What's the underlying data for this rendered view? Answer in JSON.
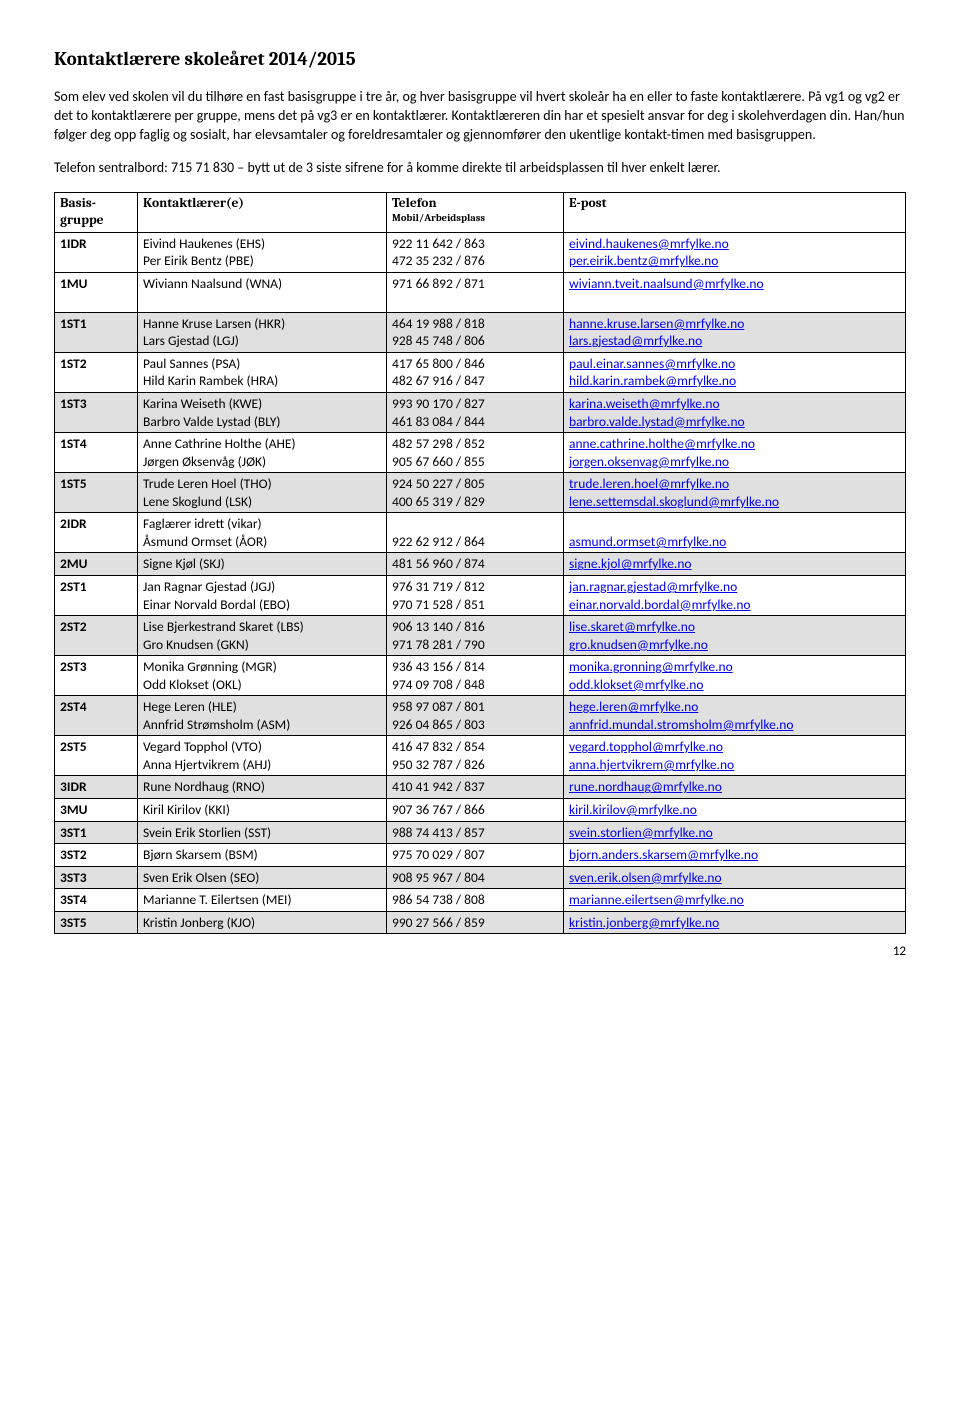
{
  "title": "Kontaktlærere skoleåret 2014/2015",
  "para1": "Som elev ved skolen vil du tilhøre en fast basisgruppe i tre år, og hver basisgruppe vil hvert skoleår ha en eller to faste kontaktlærere. På vg1 og vg2 er det to kontaktlærere per gruppe, mens det på vg3 er en kontaktlærer. Kontaktlæreren din har et spesielt ansvar for deg i skolehverdagen din. Han/hun følger deg opp faglig og sosialt, har elevsamtaler og foreldresamtaler og gjennomfører den ukentlige kontakt-timen med basisgruppen.",
  "para2": "Telefon sentralbord: 715 71 830 – bytt ut de 3 siste sifrene for å komme direkte til arbeidsplassen til hver enkelt lærer.",
  "headers": {
    "group": "Basis-\ngruppe",
    "teacher": "Kontaktlærer(e)",
    "phone": "Telefon",
    "phone_sub": "Mobil/Arbeidsplass",
    "email": "E-post"
  },
  "rows": [
    {
      "shade": false,
      "group": "1IDR",
      "teachers": [
        "Eivind Haukenes (EHS)",
        "Per Eirik Bentz (PBE)"
      ],
      "phones": [
        "922 11 642 / 863",
        "472 35 232 / 876"
      ],
      "emails": [
        "eivind.haukenes@mrfylke.no",
        "per.eirik.bentz@mrfylke.no"
      ]
    },
    {
      "shade": false,
      "group": "1MU",
      "teachers": [
        "Wiviann Naalsund (WNA)",
        ""
      ],
      "phones": [
        "971 66 892 / 871",
        ""
      ],
      "emails": [
        "wiviann.tveit.naalsund@mrfylke.no",
        ""
      ]
    },
    {
      "shade": true,
      "group": "1ST1",
      "teachers": [
        "Hanne Kruse Larsen (HKR)",
        "Lars Gjestad (LGJ)"
      ],
      "phones": [
        "464 19 988 / 818",
        "928 45 748 / 806"
      ],
      "emails": [
        "hanne.kruse.larsen@mrfylke.no",
        "lars.gjestad@mrfylke.no"
      ]
    },
    {
      "shade": false,
      "group": "1ST2",
      "teachers": [
        "Paul Sannes (PSA)",
        "Hild Karin Rambek (HRA)"
      ],
      "phones": [
        "417 65 800 / 846",
        "482 67 916 / 847"
      ],
      "emails": [
        "paul.einar.sannes@mrfylke.no",
        "hild.karin.rambek@mrfylke.no"
      ]
    },
    {
      "shade": true,
      "group": "1ST3",
      "teachers": [
        "Karina Weiseth (KWE)",
        "Barbro Valde Lystad (BLY)"
      ],
      "phones": [
        "993 90 170 / 827",
        "461 83 084 / 844"
      ],
      "emails": [
        "karina.weiseth@mrfylke.no",
        "barbro.valde.lystad@mrfylke.no"
      ]
    },
    {
      "shade": false,
      "group": "1ST4",
      "teachers": [
        "Anne Cathrine Holthe (AHE)",
        "Jørgen Øksenvåg (JØK)"
      ],
      "phones": [
        "482 57 298 / 852",
        "905 67 660 / 855"
      ],
      "emails": [
        "anne.cathrine.holthe@mrfylke.no",
        "jorgen.oksenvag@mrfylke.no"
      ]
    },
    {
      "shade": true,
      "group": "1ST5",
      "teachers": [
        "Trude Leren Hoel (THO)",
        "Lene Skoglund (LSK)"
      ],
      "phones": [
        "924 50 227 / 805",
        "400 65 319 / 829"
      ],
      "emails": [
        "trude.leren.hoel@mrfylke.no",
        "lene.settemsdal.skoglund@mrfylke.no"
      ]
    },
    {
      "shade": false,
      "group": "2IDR",
      "teachers": [
        "Faglærer idrett (vikar)",
        "Åsmund Ormset (ÅOR)"
      ],
      "phones": [
        "",
        "922 62 912 / 864"
      ],
      "emails": [
        "",
        "asmund.ormset@mrfylke.no"
      ]
    },
    {
      "shade": true,
      "group": "2MU",
      "teachers": [
        "Signe Kjøl (SKJ)"
      ],
      "phones": [
        "481 56 960 / 874"
      ],
      "emails": [
        "signe.kjol@mrfylke.no"
      ]
    },
    {
      "shade": false,
      "group": "2ST1",
      "teachers": [
        "Jan Ragnar Gjestad (JGJ)",
        "Einar Norvald Bordal (EBO)"
      ],
      "phones": [
        "976 31 719 / 812",
        "970 71 528 / 851"
      ],
      "emails": [
        "jan.ragnar.gjestad@mrfylke.no",
        "einar.norvald.bordal@mrfylke.no"
      ]
    },
    {
      "shade": true,
      "group": "2ST2",
      "teachers": [
        "Lise Bjerkestrand Skaret (LBS)",
        "Gro Knudsen (GKN)"
      ],
      "phones": [
        "906 13 140 / 816",
        "971 78 281 / 790"
      ],
      "emails": [
        "lise.skaret@mrfylke.no",
        "gro.knudsen@mrfylke.no"
      ]
    },
    {
      "shade": false,
      "group": "2ST3",
      "teachers": [
        "Monika Grønning (MGR)",
        "Odd Klokset (OKL)"
      ],
      "phones": [
        "936 43 156 / 814",
        "974 09 708 / 848"
      ],
      "emails": [
        "monika.gronning@mrfylke.no",
        "odd.klokset@mrfylke.no"
      ]
    },
    {
      "shade": true,
      "group": "2ST4",
      "teachers": [
        "Hege Leren (HLE)",
        "Annfrid Strømsholm (ASM)"
      ],
      "phones": [
        "958 97 087 / 801",
        "926 04 865 / 803"
      ],
      "emails": [
        "hege.leren@mrfylke.no",
        "annfrid.mundal.stromsholm@mrfylke.no"
      ]
    },
    {
      "shade": false,
      "group": "2ST5",
      "teachers": [
        "Vegard Topphol (VTO)",
        "Anna Hjertvikrem (AHJ)"
      ],
      "phones": [
        "416 47 832 / 854",
        "950 32 787 / 826"
      ],
      "emails": [
        "vegard.topphol@mrfylke.no",
        "anna.hjertvikrem@mrfylke.no"
      ]
    },
    {
      "shade": true,
      "group": "3IDR",
      "teachers": [
        "Rune Nordhaug (RNO)"
      ],
      "phones": [
        "410 41 942 / 837"
      ],
      "emails": [
        "rune.nordhaug@mrfylke.no"
      ]
    },
    {
      "shade": false,
      "group": "3MU",
      "teachers": [
        "Kiril Kirilov (KKI)"
      ],
      "phones": [
        "907 36 767 / 866"
      ],
      "emails": [
        "kiril.kirilov@mrfylke.no"
      ]
    },
    {
      "shade": true,
      "group": "3ST1",
      "teachers": [
        "Svein Erik Storlien (SST)"
      ],
      "phones": [
        "988 74 413 / 857"
      ],
      "emails": [
        "svein.storlien@mrfylke.no"
      ]
    },
    {
      "shade": false,
      "group": "3ST2",
      "teachers": [
        "Bjørn Skarsem (BSM)"
      ],
      "phones": [
        "975 70 029 / 807"
      ],
      "emails": [
        "bjorn.anders.skarsem@mrfylke.no"
      ]
    },
    {
      "shade": true,
      "group": "3ST3",
      "teachers": [
        "Sven Erik Olsen (SEO)"
      ],
      "phones": [
        "908 95 967 / 804"
      ],
      "emails": [
        "sven.erik.olsen@mrfylke.no"
      ]
    },
    {
      "shade": false,
      "group": "3ST4",
      "teachers": [
        "Marianne T. Eilertsen (MEI)"
      ],
      "phones": [
        "986 54 738 / 808"
      ],
      "emails": [
        "marianne.eilertsen@mrfylke.no"
      ]
    },
    {
      "shade": true,
      "group": "3ST5",
      "teachers": [
        "Kristin Jonberg (KJO)"
      ],
      "phones": [
        "990 27 566 / 859"
      ],
      "emails": [
        "kristin.jonberg@mrfylke.no"
      ]
    }
  ],
  "pagenum": "12"
}
